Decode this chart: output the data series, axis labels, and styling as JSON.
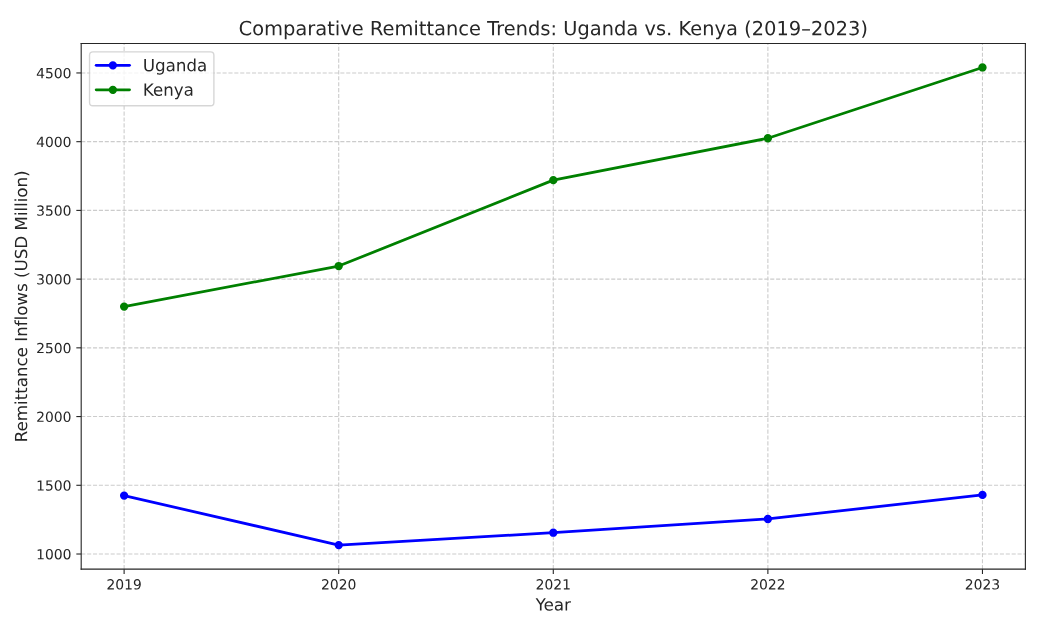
{
  "chart_data": {
    "type": "line",
    "title": "Comparative Remittance Trends: Uganda vs. Kenya (2019–2023)",
    "xlabel": "Year",
    "ylabel": "Remittance Inflows (USD Million)",
    "x": [
      2019,
      2020,
      2021,
      2022,
      2023
    ],
    "series": [
      {
        "name": "Uganda",
        "color": "#0000ff",
        "values": [
          1425,
          1065,
          1155,
          1255,
          1430
        ]
      },
      {
        "name": "Kenya",
        "color": "#008000",
        "values": [
          2800,
          3095,
          3720,
          4025,
          4540
        ]
      }
    ],
    "xlim": [
      2018.8,
      2023.2
    ],
    "xticks": [
      2019,
      2020,
      2021,
      2022,
      2023
    ],
    "ylim": [
      890,
      4714
    ],
    "yticks": [
      1000,
      1500,
      2000,
      2500,
      3000,
      3500,
      4000,
      4500
    ],
    "grid": true,
    "legend": "top left",
    "marker": "circle",
    "line_style": "solid"
  }
}
